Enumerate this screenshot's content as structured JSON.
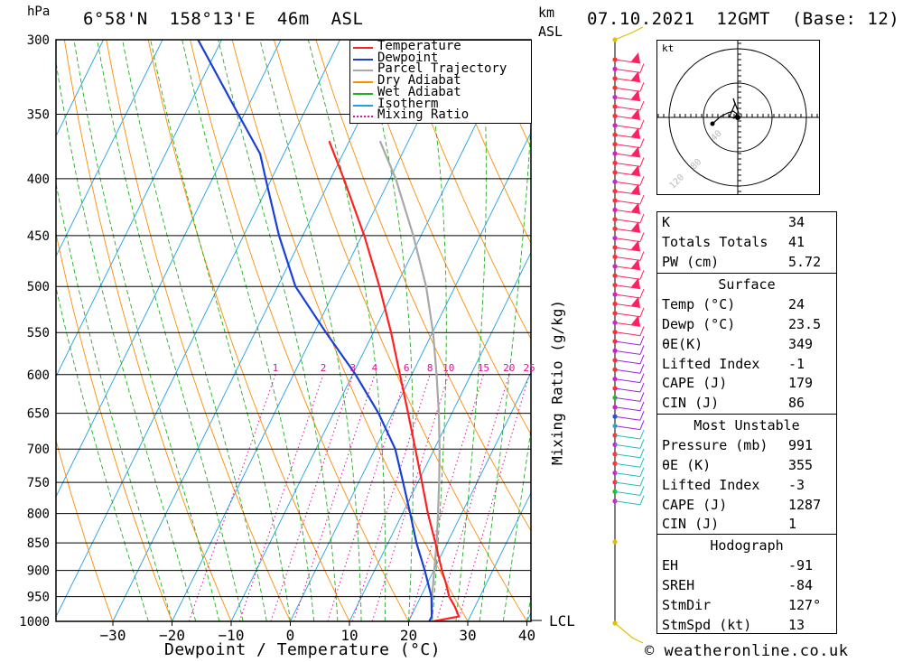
{
  "header": {
    "pressure_unit": "hPa",
    "location": "6°58'N  158°13'E  46m  ASL",
    "km_label": "km",
    "asl_label": "ASL",
    "datetime": "07.10.2021  12GMT  (Base: 12)"
  },
  "footer": {
    "xlabel": "Dewpoint / Temperature (°C)",
    "mixing_ratio_label": "Mixing Ratio (g/kg)",
    "lcl_label": "LCL",
    "credit": "© weatheronline.co.uk"
  },
  "legend": [
    {
      "label": "Temperature",
      "color": "#ff2020",
      "style": "solid"
    },
    {
      "label": "Dewpoint",
      "color": "#1a3fd6",
      "style": "solid"
    },
    {
      "label": "Parcel Trajectory",
      "color": "#a8a8a8",
      "style": "solid"
    },
    {
      "label": "Dry Adiabat",
      "color": "#ff8c00",
      "style": "solid"
    },
    {
      "label": "Wet Adiabat",
      "color": "#20b020",
      "style": "solid"
    },
    {
      "label": "Isotherm",
      "color": "#1ea0e6",
      "style": "solid"
    },
    {
      "label": "Mixing Ratio",
      "color": "#e0109a",
      "style": "dotted"
    }
  ],
  "chart_data": {
    "type": "line",
    "title": "",
    "xlabel": "Dewpoint / Temperature (°C)",
    "ylabel": "hPa",
    "xlim": [
      -40,
      40
    ],
    "ylim": [
      1000,
      300
    ],
    "pressure_levels": [
      300,
      350,
      400,
      450,
      500,
      550,
      600,
      650,
      700,
      750,
      800,
      850,
      900,
      950,
      1000
    ],
    "x_ticks": [
      -30,
      -20,
      -10,
      0,
      10,
      20,
      30,
      40
    ],
    "mixing_ratio_ticks": [
      "1",
      "2",
      "3",
      "4",
      "6",
      "8",
      "10",
      "15",
      "20",
      "25"
    ],
    "temperature": {
      "p": [
        1000,
        990,
        970,
        950,
        925,
        900,
        850,
        800,
        750,
        700,
        650,
        600,
        550,
        500,
        450,
        400,
        370
      ],
      "t": [
        24.2,
        28.1,
        26.6,
        24.8,
        23.2,
        21.4,
        18.0,
        14.3,
        10.7,
        6.8,
        2.6,
        -2.0,
        -7.0,
        -12.8,
        -19.6,
        -27.8,
        -33.4
      ]
    },
    "dewpoint": {
      "p": [
        1000,
        990,
        950,
        900,
        850,
        800,
        750,
        700,
        650,
        600,
        550,
        500,
        450,
        400,
        380,
        350,
        300
      ],
      "t": [
        23.5,
        23.5,
        21.8,
        18.5,
        14.8,
        11.3,
        7.5,
        3.4,
        -2.4,
        -9.5,
        -18.0,
        -27.0,
        -34.0,
        -41.0,
        -44.0,
        -51.0,
        -64.0
      ]
    },
    "parcel": {
      "p": [
        990,
        950,
        900,
        850,
        800,
        750,
        700,
        650,
        600,
        550,
        500,
        450,
        400,
        370
      ],
      "t": [
        23.5,
        21.9,
        20.1,
        18.2,
        16.0,
        13.6,
        10.9,
        7.8,
        4.2,
        0.1,
        -4.9,
        -11.3,
        -19.0,
        -24.8
      ]
    }
  },
  "hodograph": {
    "unit_label": "kt",
    "ring_labels": [
      "40",
      "80",
      "120"
    ]
  },
  "indices": {
    "k_label": "K",
    "k": "34",
    "tt_label": "Totals Totals",
    "tt": "41",
    "pw_label": "PW (cm)",
    "pw": "5.72"
  },
  "surface": {
    "title": "Surface",
    "temp_label": "Temp (°C)",
    "temp": "24",
    "dewp_label": "Dewp (°C)",
    "dewp": "23.5",
    "theta_label": "θE(K)",
    "theta": "349",
    "li_label": "Lifted Index",
    "li": "-1",
    "cape_label": "CAPE (J)",
    "cape": "179",
    "cin_label": "CIN (J)",
    "cin": "86"
  },
  "most_unstable": {
    "title": "Most Unstable",
    "pressure_label": "Pressure (mb)",
    "pressure": "991",
    "theta_label": "θE (K)",
    "theta": "355",
    "li_label": "Lifted Index",
    "li": "-3",
    "cape_label": "CAPE (J)",
    "cape": "1287",
    "cin_label": "CIN (J)",
    "cin": "1"
  },
  "hodograph_table": {
    "title": "Hodograph",
    "eh_label": "EH",
    "eh": "-91",
    "sreh_label": "SREH",
    "sreh": "-84",
    "stmdir_label": "StmDir",
    "stmdir": "127°",
    "stmspd_label": "StmSpd (kt)",
    "stmspd": "13"
  }
}
